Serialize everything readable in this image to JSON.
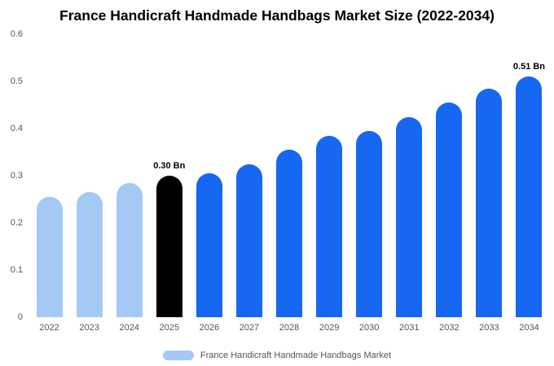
{
  "title": "France Handicraft Handmade Handbags Market Size (2022-2034)",
  "chart_data": {
    "type": "bar",
    "title": "France Handicraft Handmade Handbags Market Size (2022-2034)",
    "categories": [
      "2022",
      "2023",
      "2024",
      "2025",
      "2026",
      "2027",
      "2028",
      "2029",
      "2030",
      "2031",
      "2032",
      "2033",
      "2034"
    ],
    "values": [
      0.255,
      0.265,
      0.285,
      0.3,
      0.305,
      0.325,
      0.355,
      0.385,
      0.395,
      0.425,
      0.455,
      0.485,
      0.51
    ],
    "bar_colors": [
      "#a4c9f5",
      "#a4c9f5",
      "#a4c9f5",
      "#000000",
      "#1667f2",
      "#1667f2",
      "#1667f2",
      "#1667f2",
      "#1667f2",
      "#1667f2",
      "#1667f2",
      "#1667f2",
      "#1667f2"
    ],
    "annotations": [
      {
        "index": 3,
        "label": "0.30 Bn"
      },
      {
        "index": 12,
        "label": "0.51 Bn"
      }
    ],
    "xlabel": "",
    "ylabel": "",
    "ylim": [
      0,
      0.6
    ],
    "ytick_labels": [
      "0",
      "0.1",
      "0.2",
      "0.3",
      "0.4",
      "0.5",
      "0.6"
    ],
    "grid": false,
    "legend_position": "bottom",
    "legend": [
      {
        "label": "France Handicraft Handmade Handbags Market",
        "color": "#a4c9f5"
      }
    ],
    "colors": {
      "light_blue": "#a4c9f5",
      "highlight_black": "#000000",
      "primary_blue": "#1667f2",
      "axis_text": "#555555",
      "background": "#ffffff"
    }
  }
}
